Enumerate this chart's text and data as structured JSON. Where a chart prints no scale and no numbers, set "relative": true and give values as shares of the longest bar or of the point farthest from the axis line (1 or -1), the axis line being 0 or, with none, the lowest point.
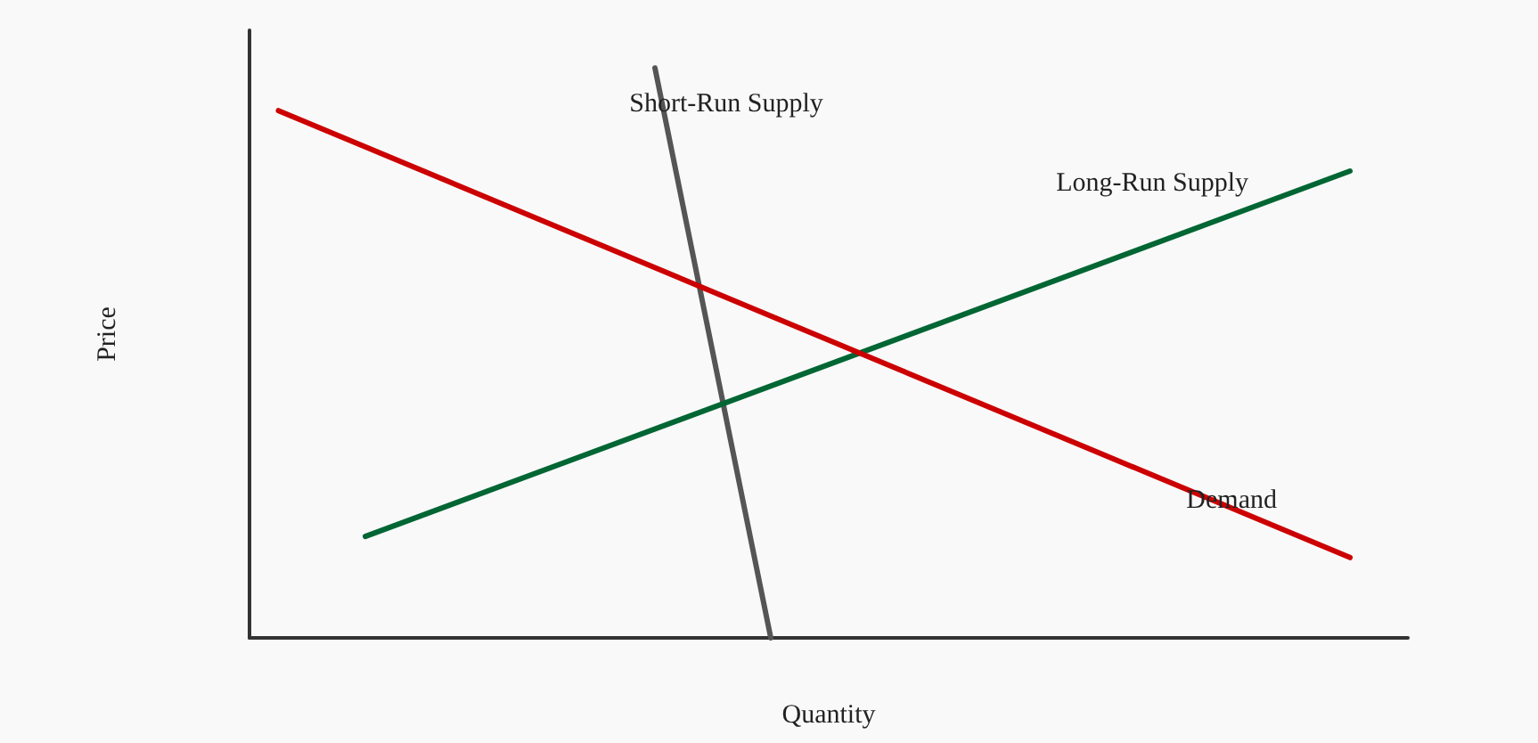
{
  "chart_data": {
    "type": "line",
    "relative": true,
    "xlabel": "Quantity",
    "ylabel": "Price",
    "legend": false,
    "grid": false,
    "marker": "none",
    "line_style": "solid",
    "categories": [
      null,
      null,
      null,
      null,
      null,
      null,
      null,
      null,
      null,
      null,
      null,
      null,
      null,
      null,
      null,
      null,
      null,
      null,
      null,
      null,
      null,
      null,
      null,
      null,
      null,
      null,
      null,
      null,
      null,
      null,
      null,
      null,
      null,
      null,
      null,
      null,
      null,
      null,
      null,
      null,
      null
    ],
    "series": [
      {
        "name": "Short-Run Supply",
        "color": "#555555",
        "values": [
          null,
          null,
          null,
          null,
          null,
          null,
          null,
          null,
          null,
          null,
          null,
          null,
          null,
          null,
          1,
          null,
          null,
          null,
          0,
          null,
          null,
          null,
          null,
          null,
          null,
          null,
          null,
          null,
          null,
          null,
          null,
          null,
          null,
          null,
          null,
          null,
          null,
          null,
          null,
          null,
          null
        ]
      },
      {
        "name": "Long-Run Supply",
        "color": "#006633",
        "values": [
          null,
          null,
          null,
          null,
          0.178,
          null,
          null,
          null,
          null,
          null,
          null,
          null,
          null,
          null,
          null,
          null,
          null,
          null,
          null,
          null,
          null,
          null,
          null,
          null,
          null,
          null,
          null,
          null,
          null,
          null,
          null,
          null,
          null,
          null,
          null,
          null,
          null,
          null,
          0.819,
          null,
          null
        ]
      },
      {
        "name": "Demand",
        "color": "#cc0000",
        "values": [
          null,
          0.925,
          null,
          null,
          null,
          null,
          null,
          null,
          null,
          null,
          null,
          null,
          null,
          null,
          null,
          null,
          null,
          null,
          null,
          null,
          null,
          null,
          null,
          null,
          null,
          null,
          null,
          null,
          null,
          null,
          null,
          null,
          null,
          null,
          null,
          null,
          null,
          null,
          0.141,
          null,
          null
        ]
      }
    ]
  }
}
